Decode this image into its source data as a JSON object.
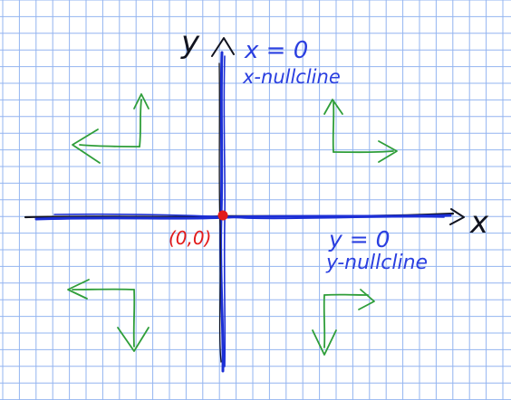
{
  "colors": {
    "background": "#ffffff",
    "grid": "#93b4f0",
    "axes": "#1c2fd6",
    "axes_dark": "#11131f",
    "labels": "#2a3fe0",
    "origin": "#e21a1a",
    "arrows": "#2f9e3a"
  },
  "axes": {
    "x_label": "x",
    "y_label": "y"
  },
  "nullclines": {
    "x_nullcline_equation": "x = 0",
    "x_nullcline_name": "x-nullcline",
    "y_nullcline_equation": "y = 0",
    "y_nullcline_name": "y-nullcline"
  },
  "origin": {
    "label": "(0,0)"
  },
  "direction_arrows": [
    {
      "quadrant": "top-left",
      "vertical": "up",
      "horizontal": "left"
    },
    {
      "quadrant": "top-right",
      "vertical": "up",
      "horizontal": "right"
    },
    {
      "quadrant": "bottom-left",
      "vertical": "down",
      "horizontal": "left"
    },
    {
      "quadrant": "bottom-right",
      "vertical": "down",
      "horizontal": "right"
    }
  ]
}
